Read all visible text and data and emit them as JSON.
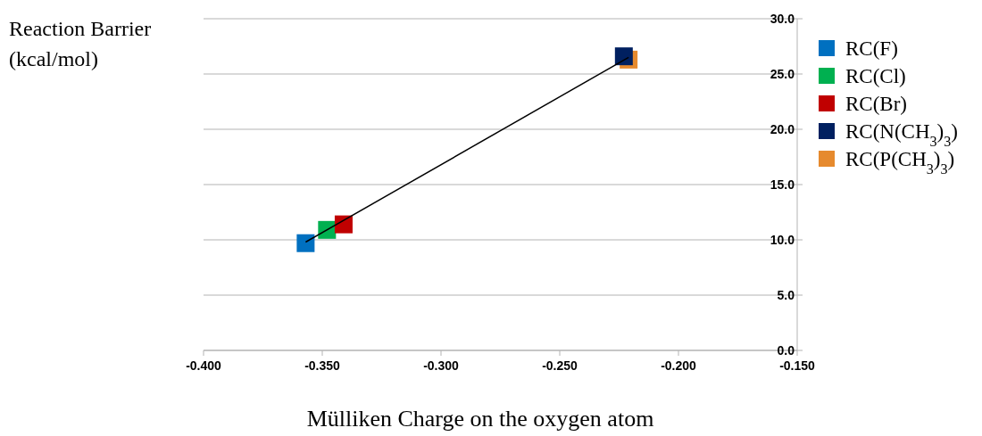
{
  "chart_data": {
    "type": "scatter",
    "xlabel": "Mülliken Charge on the oxygen atom",
    "ylabel": "Reaction Barrier (kcal/mol)",
    "xlim": [
      -0.4,
      -0.15
    ],
    "ylim": [
      0,
      30
    ],
    "xticks": [
      {
        "value": -0.4,
        "label": "-0.400"
      },
      {
        "value": -0.35,
        "label": "-0.350"
      },
      {
        "value": -0.3,
        "label": "-0.300"
      },
      {
        "value": -0.25,
        "label": "-0.250"
      },
      {
        "value": -0.2,
        "label": "-0.200"
      },
      {
        "value": -0.15,
        "label": "-0.150"
      }
    ],
    "yticks": [
      {
        "value": 0,
        "label": "0.0"
      },
      {
        "value": 5,
        "label": "5.0"
      },
      {
        "value": 10,
        "label": "10.0"
      },
      {
        "value": 15,
        "label": "15.0"
      },
      {
        "value": 20,
        "label": "20.0"
      },
      {
        "value": 25,
        "label": "25.0"
      },
      {
        "value": 30,
        "label": "30.0"
      }
    ],
    "grid": "y",
    "legend": "right",
    "marker": "square",
    "series": [
      {
        "name": "RC(F)",
        "color": "#0070c0",
        "x": [
          -0.357
        ],
        "values": [
          9.7
        ]
      },
      {
        "name": "RC(Cl)",
        "color": "#00b050",
        "x": [
          -0.348
        ],
        "values": [
          10.9
        ]
      },
      {
        "name": "RC(Br)",
        "color": "#c00000",
        "x": [
          -0.341
        ],
        "values": [
          11.4
        ]
      },
      {
        "name": "RC(P(CH$_{3}$)$_{3}$)",
        "color": "#e68a2e",
        "x": [
          -0.221
        ],
        "values": [
          26.3
        ]
      },
      {
        "name": "RC(N(CH$_{3}$)$_{3}$)",
        "color": "#002060",
        "x": [
          -0.223
        ],
        "values": [
          26.6
        ]
      },
      {
        "type": "line",
        "color": "#000000",
        "x": [
          -0.357,
          -0.221
        ],
        "values": [
          9.8,
          26.5
        ],
        "marker": "none"
      }
    ]
  }
}
